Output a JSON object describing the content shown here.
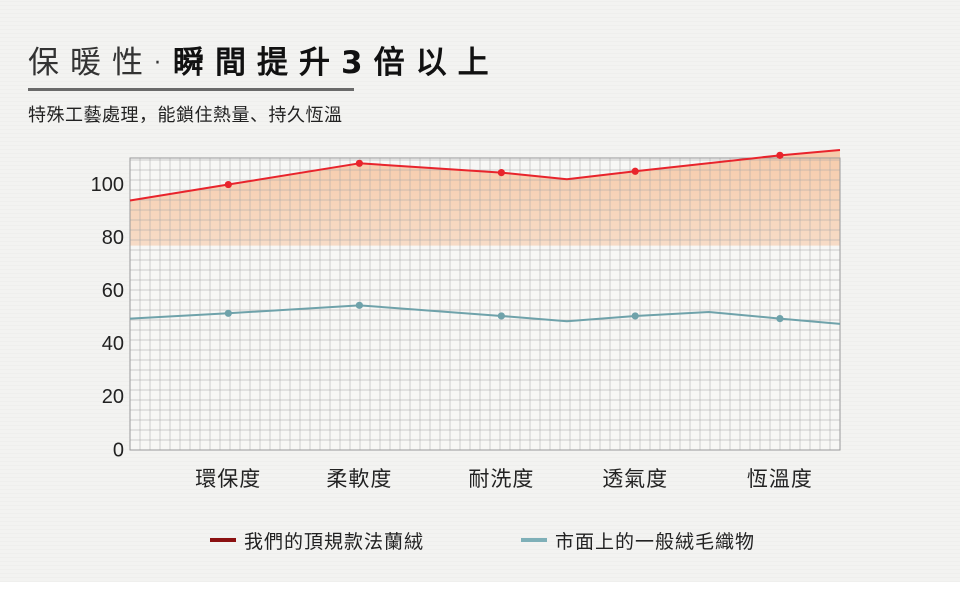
{
  "header": {
    "title_light": "保暖性",
    "title_dot": "·",
    "title_bold": "瞬間提升3倍以上",
    "subtitle": "特殊工藝處理，能鎖住熱量、持久恆溫"
  },
  "colors": {
    "series_primary": "#e8242c",
    "series_secondary": "#6fa2aa",
    "fill_primary": "#f7c9a7",
    "legend_primary": "#8b1111",
    "legend_secondary": "#7fb0b8",
    "grid": "#a9a9a9"
  },
  "chart_data": {
    "type": "line",
    "title": "",
    "xlabel": "",
    "ylabel": "",
    "ylim": [
      0,
      110
    ],
    "y_ticks": [
      0,
      20,
      40,
      60,
      80,
      100
    ],
    "grid": true,
    "legend_position": "bottom",
    "categories": [
      "環保度",
      "柔軟度",
      "耐洗度",
      "透氣度",
      "恆溫度"
    ],
    "x_range": [
      0,
      5.2
    ],
    "series": [
      {
        "name": "我們的頂規款法蘭絨",
        "area_fill": true,
        "area_floor": 77,
        "points": [
          {
            "x": 0.0,
            "y": 94,
            "marker": false
          },
          {
            "x": 0.72,
            "y": 100,
            "marker": true
          },
          {
            "x": 1.68,
            "y": 108,
            "marker": true
          },
          {
            "x": 2.72,
            "y": 104.5,
            "marker": true
          },
          {
            "x": 3.2,
            "y": 102,
            "marker": false
          },
          {
            "x": 3.7,
            "y": 105,
            "marker": true
          },
          {
            "x": 4.76,
            "y": 111,
            "marker": true
          },
          {
            "x": 5.2,
            "y": 113,
            "marker": false
          }
        ]
      },
      {
        "name": "市面上的一般絨毛織物",
        "area_fill": false,
        "points": [
          {
            "x": 0.0,
            "y": 49.5,
            "marker": false
          },
          {
            "x": 0.72,
            "y": 51.5,
            "marker": true
          },
          {
            "x": 1.68,
            "y": 54.5,
            "marker": true
          },
          {
            "x": 2.72,
            "y": 50.5,
            "marker": true
          },
          {
            "x": 3.2,
            "y": 48.5,
            "marker": false
          },
          {
            "x": 3.7,
            "y": 50.5,
            "marker": true
          },
          {
            "x": 4.24,
            "y": 52,
            "marker": false
          },
          {
            "x": 4.76,
            "y": 49.5,
            "marker": true
          },
          {
            "x": 5.2,
            "y": 47.5,
            "marker": false
          }
        ]
      }
    ],
    "category_positions": [
      0.72,
      1.68,
      2.72,
      3.7,
      4.76
    ]
  },
  "legend": {
    "items": [
      {
        "label": "我們的頂規款法蘭絨"
      },
      {
        "label": "市面上的一般絨毛織物"
      }
    ]
  }
}
